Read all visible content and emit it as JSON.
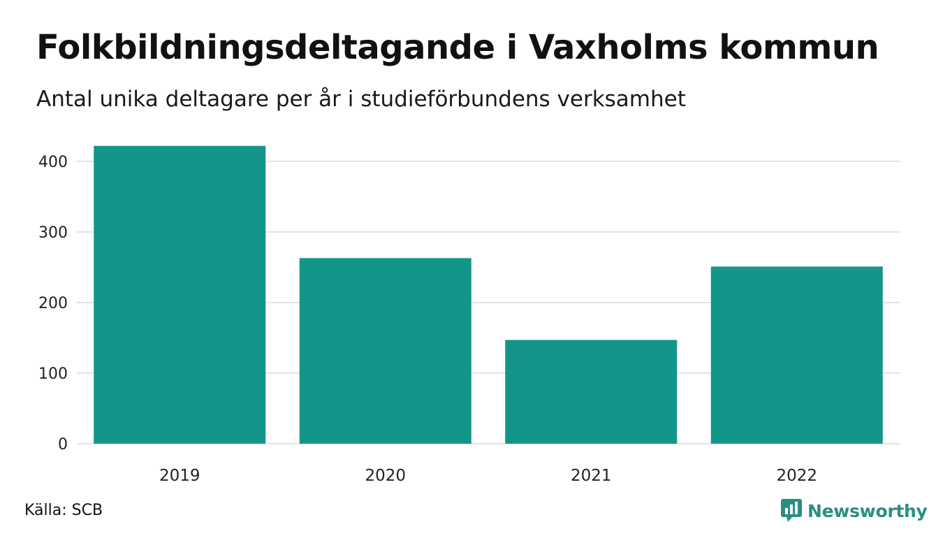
{
  "chart_data": {
    "type": "bar",
    "title": "Folkbildningsdeltagande i Vaxholms kommun",
    "subtitle": "Antal unika deltagare per år i studieförbundens verksamhet",
    "categories": [
      "2019",
      "2020",
      "2021",
      "2022"
    ],
    "values": [
      422,
      263,
      147,
      251
    ],
    "yticks": [
      "0",
      "100",
      "200",
      "300",
      "400"
    ],
    "ylim": [
      0,
      430
    ],
    "xlabel": "",
    "ylabel": "",
    "grid": true,
    "bar_color": "#14958a"
  },
  "footer": {
    "source": "Källa: SCB",
    "brand": "Newsworthy",
    "brand_color": "#2a8e83"
  }
}
